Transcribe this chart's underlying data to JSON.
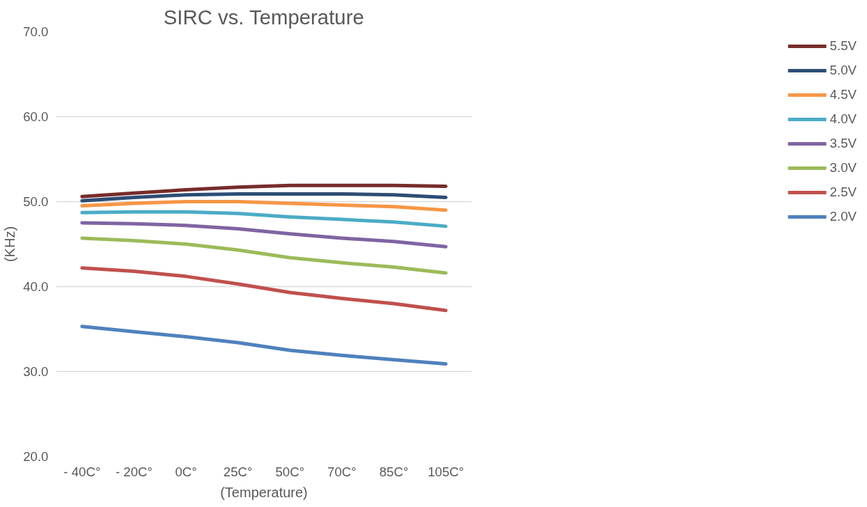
{
  "chart_data": {
    "type": "line",
    "title": "SIRC vs. Temperature",
    "xlabel": "(Temperature)",
    "ylabel": "(KHz)",
    "categories": [
      "- 40C°",
      "- 20C°",
      "0C°",
      "25C°",
      "50C°",
      "70C°",
      "85C°",
      "105C°"
    ],
    "ylim": [
      20,
      70
    ],
    "yticks": [
      {
        "value": 20,
        "label": "20.0"
      },
      {
        "value": 30,
        "label": "30.0"
      },
      {
        "value": 40,
        "label": "40.0"
      },
      {
        "value": 50,
        "label": "50.0"
      },
      {
        "value": 60,
        "label": "60.0"
      },
      {
        "value": 70,
        "label": "70.0"
      }
    ],
    "grid": "y",
    "legend": "right",
    "marker": "none",
    "line_style": "solid",
    "series": [
      {
        "name": "5.5V",
        "color": "#772c2a",
        "values": [
          50.6,
          51.0,
          51.4,
          51.7,
          51.9,
          51.9,
          51.9,
          51.8
        ]
      },
      {
        "name": "5.0V",
        "color": "#2c4d75",
        "values": [
          50.1,
          50.5,
          50.8,
          50.9,
          50.9,
          50.9,
          50.8,
          50.5
        ]
      },
      {
        "name": "4.5V",
        "color": "#f79646",
        "values": [
          49.5,
          49.8,
          50.0,
          50.0,
          49.8,
          49.6,
          49.4,
          49.0
        ]
      },
      {
        "name": "4.0V",
        "color": "#4bacc6",
        "values": [
          48.7,
          48.8,
          48.8,
          48.6,
          48.2,
          47.9,
          47.6,
          47.1
        ]
      },
      {
        "name": "3.5V",
        "color": "#8064a2",
        "values": [
          47.5,
          47.4,
          47.2,
          46.8,
          46.2,
          45.7,
          45.3,
          44.7
        ]
      },
      {
        "name": "3.0V",
        "color": "#9bbb59",
        "values": [
          45.7,
          45.4,
          45.0,
          44.3,
          43.4,
          42.8,
          42.3,
          41.6
        ]
      },
      {
        "name": "2.5V",
        "color": "#c0504d",
        "values": [
          42.2,
          41.8,
          41.2,
          40.3,
          39.3,
          38.6,
          38.0,
          37.2
        ]
      },
      {
        "name": "2.0V",
        "color": "#4f81bd",
        "values": [
          35.3,
          34.7,
          34.1,
          33.4,
          32.5,
          31.9,
          31.4,
          30.9
        ]
      }
    ]
  }
}
